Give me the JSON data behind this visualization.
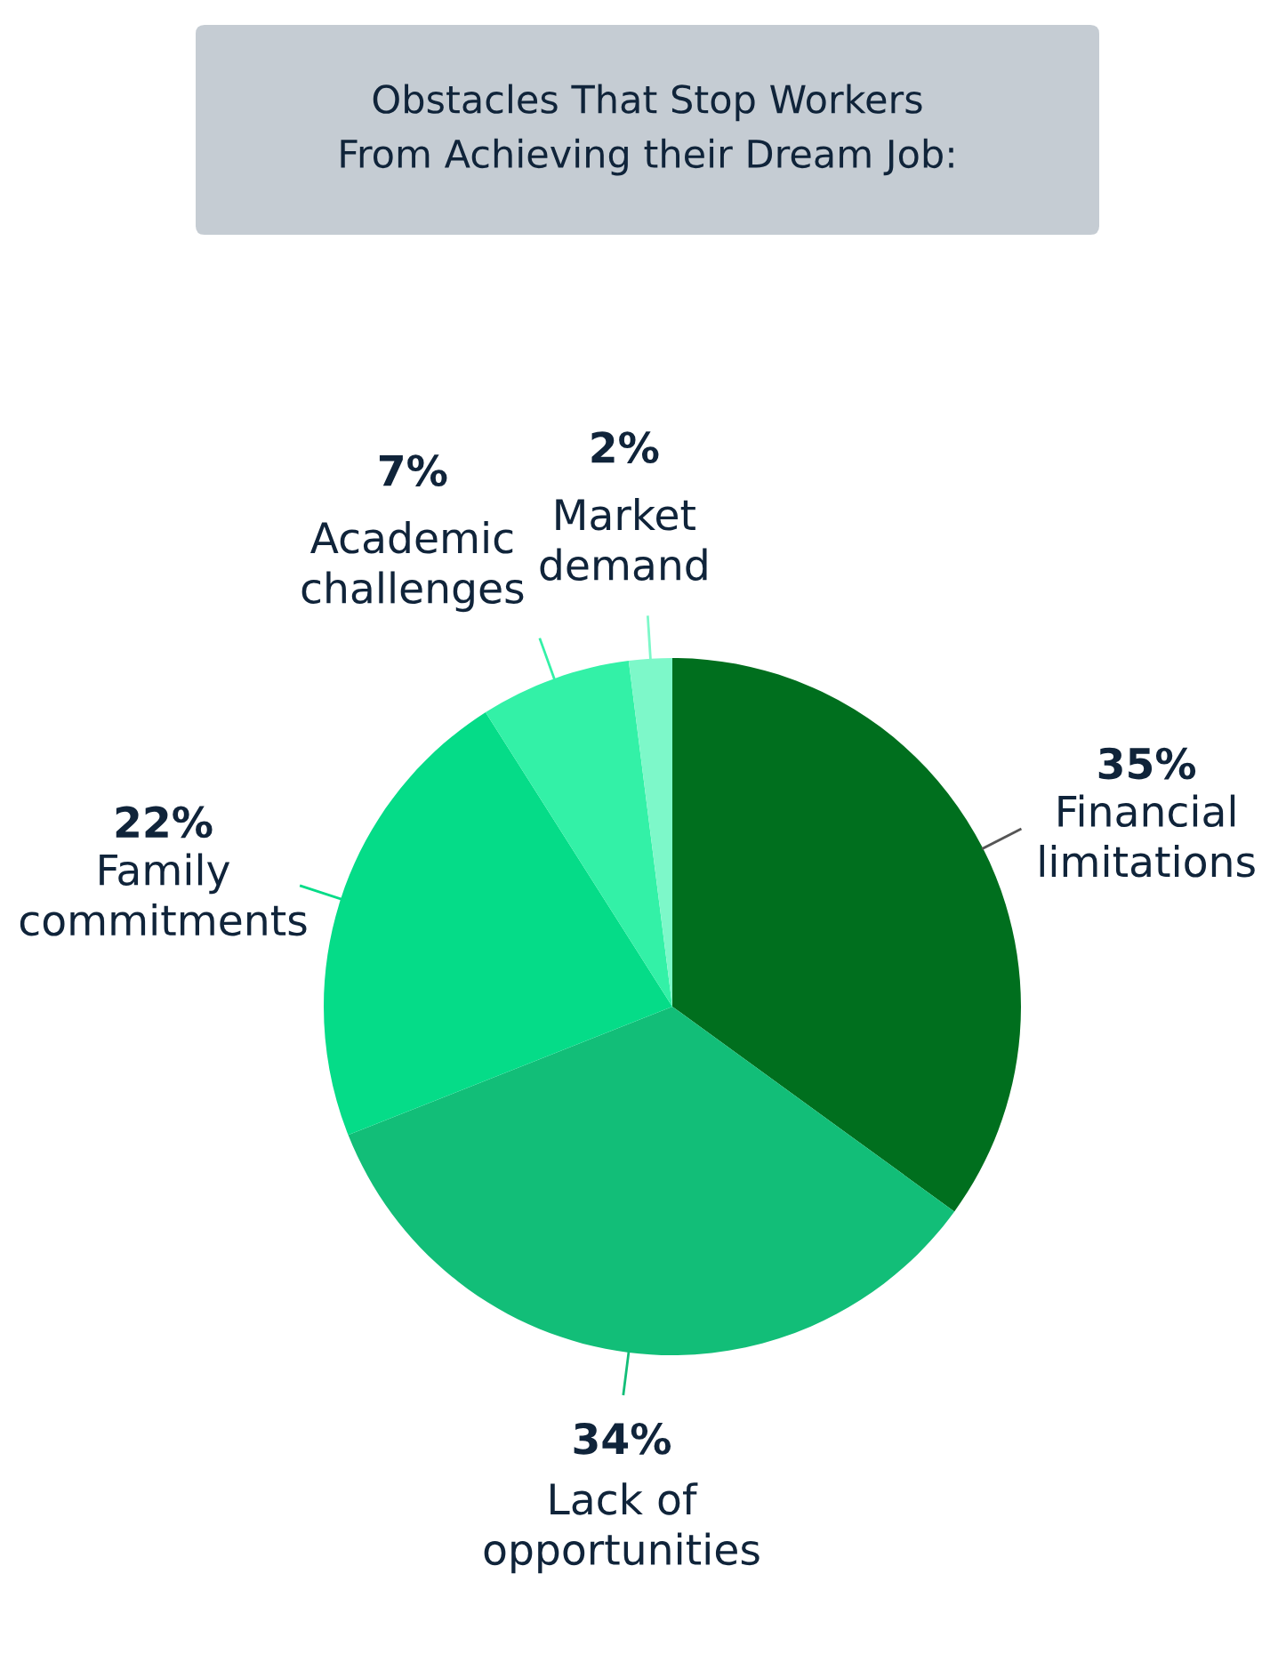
{
  "chart_data": {
    "type": "pie",
    "title": "Obstacles That Stop Workers\nFrom Achieving their Dream Job:",
    "categories": [
      "Financial\nlimitations",
      "Lack of\nopportunities",
      "Family\ncommitments",
      "Academic\nchallenges",
      "Market\ndemand"
    ],
    "values": [
      35,
      34,
      22,
      7,
      2
    ],
    "value_labels": [
      "35%",
      "34%",
      "22%",
      "7%",
      "2%"
    ],
    "colors": [
      "#006f1e",
      "#12be78",
      "#05dc88",
      "#33f1a7",
      "#7df8c9"
    ]
  }
}
